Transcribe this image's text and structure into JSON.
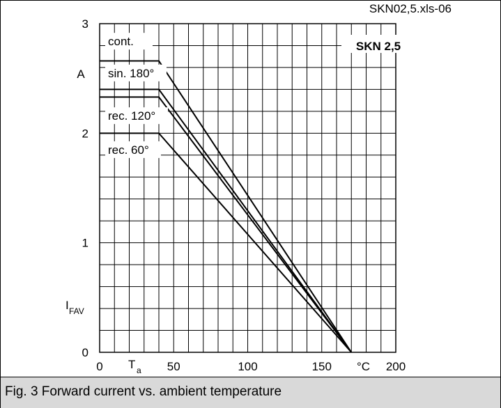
{
  "caption": "Fig. 3 Forward current vs. ambient temperature",
  "chart_data": {
    "type": "line",
    "title": "SKN 2,5",
    "file_ref": "SKN02,5.xls-06",
    "ylabel_main": "I",
    "ylabel_sub": "FAV",
    "ylabel_unit": "A",
    "xlabel_main": "T",
    "xlabel_sub": "a",
    "xlabel_unit": "°C",
    "xlim": [
      0,
      200
    ],
    "ylim": [
      0,
      3
    ],
    "x_ticks": [
      "0",
      "50",
      "100",
      "150",
      "200"
    ],
    "y_ticks": [
      "0",
      "1",
      "2",
      "3"
    ],
    "grid": true,
    "series": [
      {
        "name": "cont.",
        "x": [
          0,
          40,
          170
        ],
        "y": [
          2.66,
          2.66,
          0
        ]
      },
      {
        "name": "sin. 180°",
        "x": [
          0,
          40,
          170
        ],
        "y": [
          2.4,
          2.4,
          0
        ]
      },
      {
        "name": "rec. 120°",
        "x": [
          0,
          40,
          170
        ],
        "y": [
          2.33,
          2.33,
          0
        ]
      },
      {
        "name": "rec. 60°",
        "x": [
          0,
          40,
          170
        ],
        "y": [
          2.0,
          2.0,
          0
        ]
      }
    ]
  }
}
